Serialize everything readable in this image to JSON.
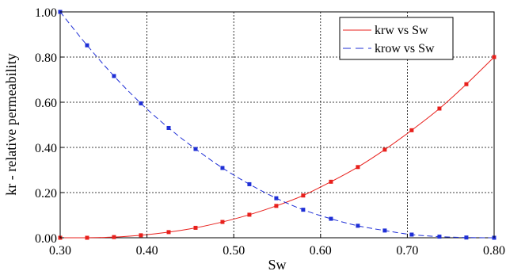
{
  "chart_data": {
    "type": "line",
    "title": "",
    "xlabel": "Sw",
    "ylabel": "kr - relative permeability",
    "xlim": [
      0.3,
      0.8
    ],
    "ylim": [
      0.0,
      1.0
    ],
    "x_ticks": [
      0.3,
      0.4,
      0.5,
      0.6,
      0.7,
      0.8
    ],
    "x_tick_labels": [
      "0.30",
      "0.40",
      "0.50",
      "0.60",
      "0.70",
      "0.80"
    ],
    "y_ticks": [
      0.0,
      0.2,
      0.4,
      0.6,
      0.8,
      1.0
    ],
    "y_tick_labels": [
      "0.00",
      "0.20",
      "0.40",
      "0.60",
      "0.80",
      "1.00"
    ],
    "grid": true,
    "legend_position": "top-right",
    "x": [
      0.3,
      0.331,
      0.362,
      0.393,
      0.425,
      0.456,
      0.487,
      0.518,
      0.549,
      0.58,
      0.612,
      0.643,
      0.674,
      0.705,
      0.737,
      0.768,
      0.8
    ],
    "series": [
      {
        "name": "krw vs Sw",
        "color": "#e8201c",
        "marker": "square",
        "line_style": "solid",
        "values": [
          0.0,
          0.0,
          0.003,
          0.011,
          0.025,
          0.044,
          0.07,
          0.102,
          0.141,
          0.187,
          0.248,
          0.313,
          0.39,
          0.476,
          0.572,
          0.68,
          0.8
        ]
      },
      {
        "name": "krow vs Sw",
        "color": "#1f2fd6",
        "marker": "square",
        "line_style": "dashed",
        "values": [
          1.0,
          0.852,
          0.716,
          0.595,
          0.486,
          0.393,
          0.309,
          0.237,
          0.175,
          0.124,
          0.084,
          0.053,
          0.032,
          0.014,
          0.005,
          0.001,
          0.0
        ]
      }
    ]
  }
}
